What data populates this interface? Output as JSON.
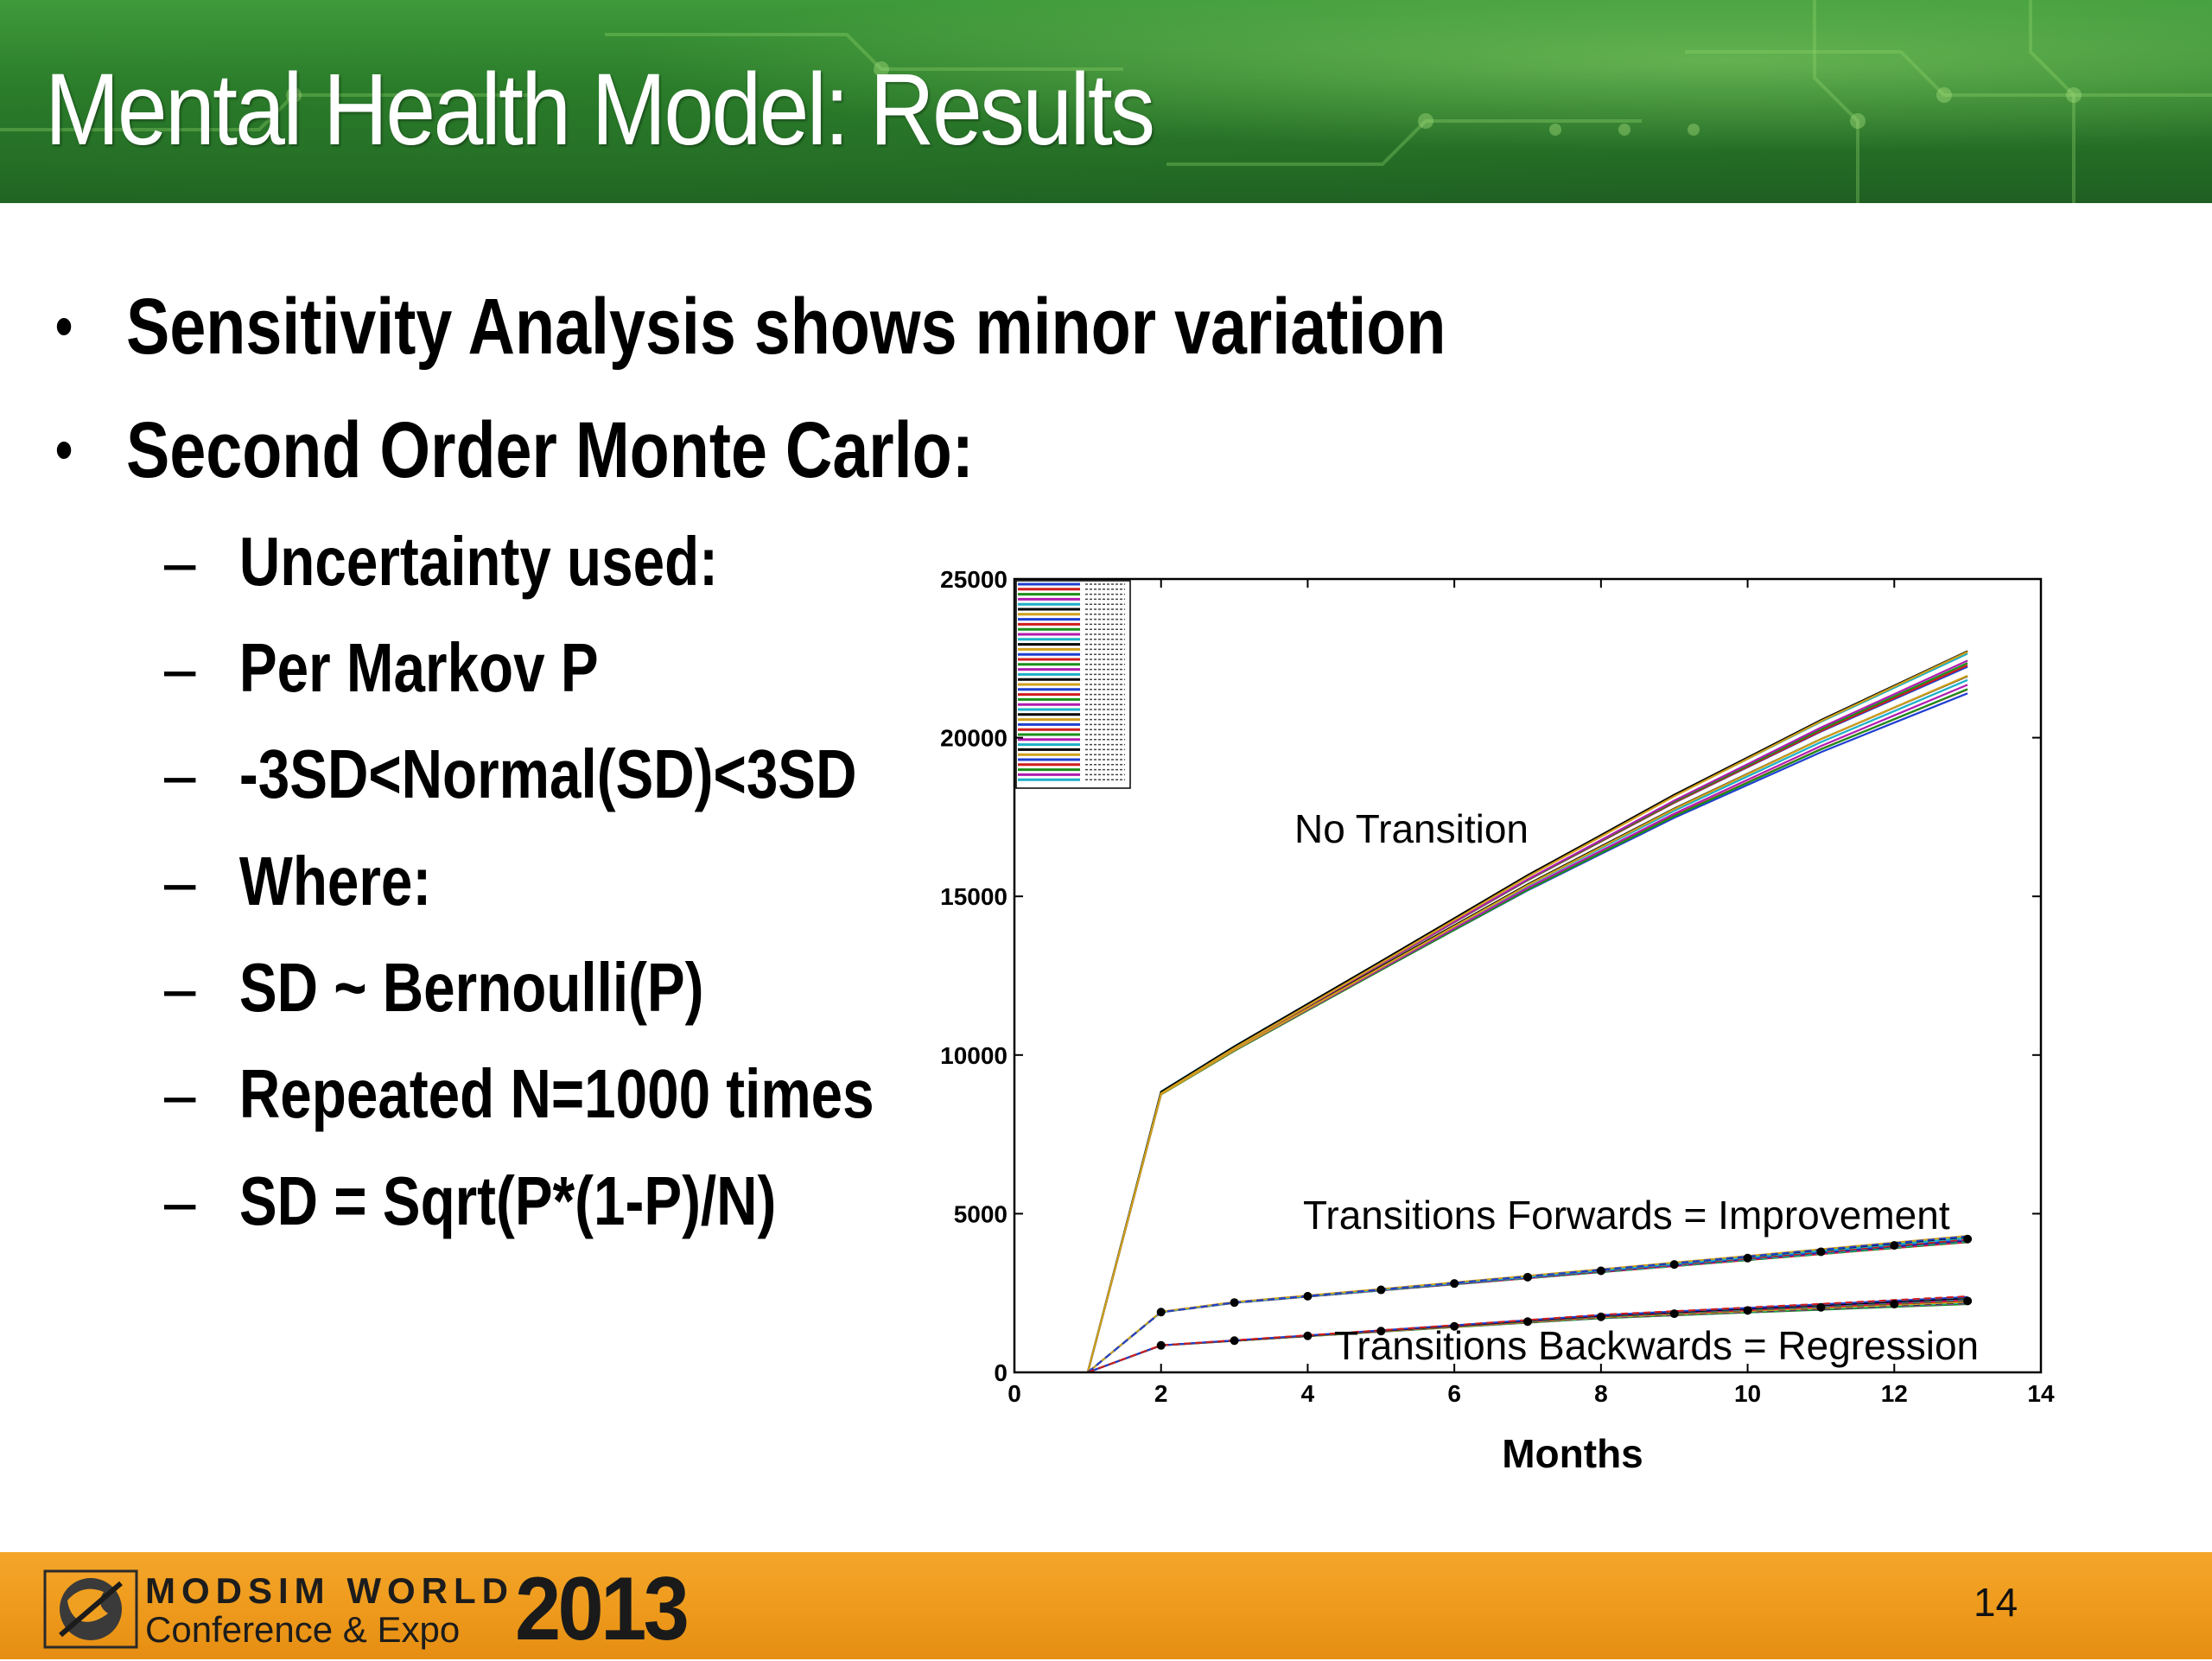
{
  "header": {
    "title": "Mental Health Model: Results"
  },
  "bullets": {
    "level1": [
      "Sensitivity Analysis shows minor variation",
      "Second Order Monte Carlo:"
    ],
    "level2": [
      "Uncertainty used:",
      "Per Markov P",
      "-3SD<Normal(SD)<3SD",
      "Where:",
      "SD ~ Bernoulli(P)",
      "Repeated N=1000 times",
      "SD = Sqrt(P*(1-P)/N)"
    ],
    "bullet_glyph": "•",
    "dash_glyph": "–"
  },
  "chart_data": {
    "type": "line",
    "xlabel": "Months",
    "ylabel": "",
    "xlim": [
      0,
      14
    ],
    "ylim": [
      0,
      25000
    ],
    "xticks": [
      0,
      2,
      4,
      6,
      8,
      10,
      12,
      14
    ],
    "yticks": [
      0,
      5000,
      10000,
      15000,
      20000,
      25000
    ],
    "grid": false,
    "legend": "top-left",
    "annotations": [
      "No Transition",
      "Transitions Forwards = Improvement",
      "Transitions Backwards = Regression"
    ],
    "groups": [
      {
        "label": "No Transition",
        "x": [
          1,
          2,
          3,
          4,
          5,
          6,
          7,
          8,
          9,
          10,
          11,
          12,
          13
        ],
        "y": [
          0,
          8800,
          10200,
          11500,
          12800,
          14100,
          15400,
          16600,
          17800,
          18900,
          20000,
          21000,
          22000
        ],
        "spread_end": [
          21400,
          22800
        ]
      },
      {
        "label": "Transitions Forwards = Improvement",
        "x": [
          1,
          2,
          3,
          4,
          5,
          6,
          7,
          8,
          9,
          10,
          11,
          12,
          13
        ],
        "y": [
          0,
          1900,
          2200,
          2400,
          2600,
          2800,
          3000,
          3200,
          3400,
          3600,
          3800,
          4000,
          4200
        ],
        "spread_end": [
          4100,
          4300
        ]
      },
      {
        "label": "Transitions Backwards = Regression",
        "x": [
          1,
          2,
          3,
          4,
          5,
          6,
          7,
          8,
          9,
          10,
          11,
          12,
          13
        ],
        "y": [
          0,
          850,
          1000,
          1150,
          1300,
          1450,
          1600,
          1750,
          1850,
          1950,
          2050,
          2150,
          2250
        ],
        "spread_end": [
          2150,
          2400
        ]
      }
    ],
    "series_colors": [
      "#1f3fd0",
      "#d01c1c",
      "#1a8f1a",
      "#b01cb0",
      "#1cb0c8",
      "#000000",
      "#d0a01c"
    ]
  },
  "footer": {
    "logo_line1": "MODSIM WORLD",
    "logo_line2": "Conference & Expo",
    "logo_year": "2013",
    "page_number": "14"
  }
}
